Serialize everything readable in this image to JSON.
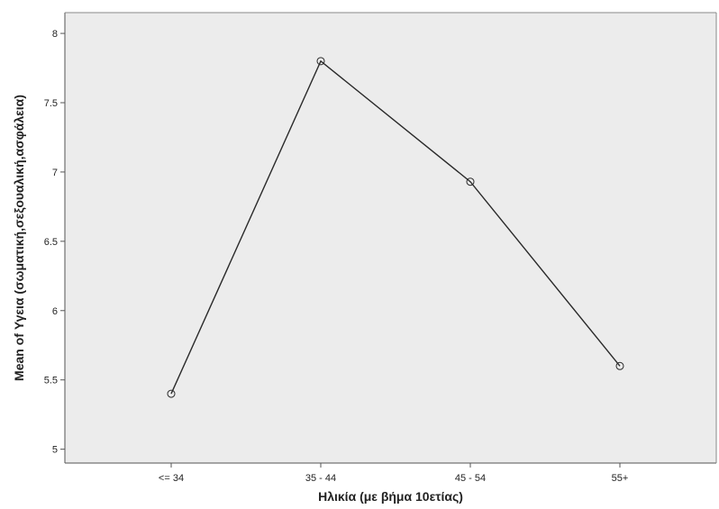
{
  "chart_data": {
    "type": "line",
    "xlabel": "Ηλικία (με βήμα 10ετίας)",
    "ylabel": "Mean of Υγεια (σωματική,σεξουαλική,ασφάλεια)",
    "categories": [
      "<= 34",
      "35 - 44",
      "45 - 54",
      "55+"
    ],
    "series": [
      {
        "values": [
          5.4,
          7.8,
          6.93,
          5.6
        ]
      }
    ],
    "ylim": [
      4.9,
      8.15
    ],
    "yticks": [
      5,
      5.5,
      6,
      6.5,
      7,
      7.5,
      8
    ],
    "ytick_labels": [
      "5",
      "5.5",
      "6",
      "6.5",
      "7",
      "7.5",
      "8"
    ],
    "grid": false,
    "legend": "none",
    "markers": "open-circle",
    "colors": {
      "plot_background": "#ececec",
      "line": "#2a2a2a",
      "axis": "#555555"
    }
  }
}
